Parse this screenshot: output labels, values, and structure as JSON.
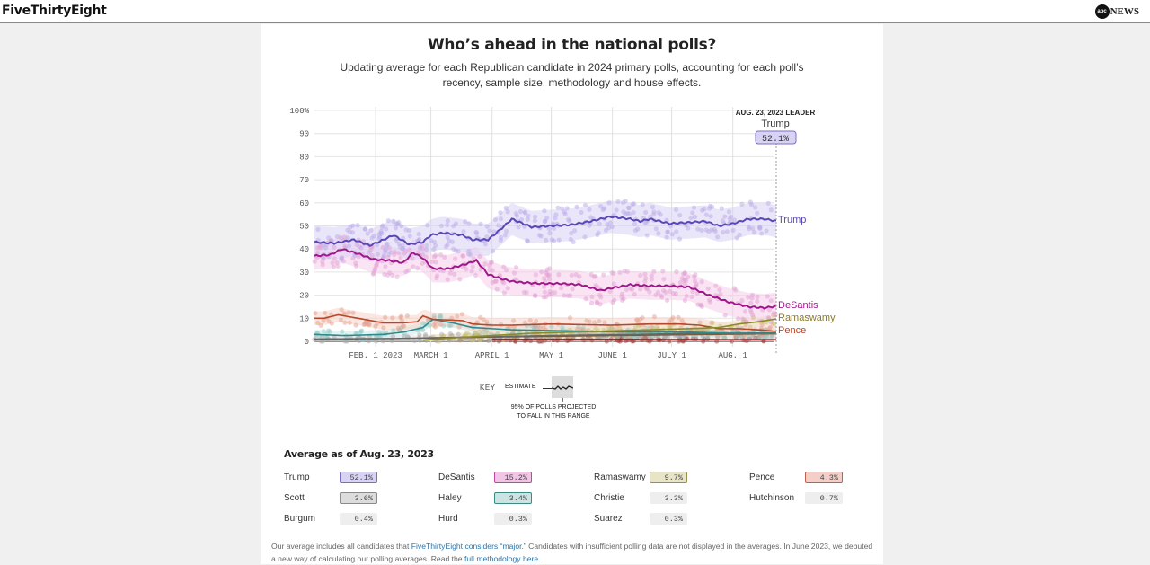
{
  "header": {
    "brand": "FiveThirtyEight",
    "partner_logo_text": "abc",
    "partner_name": "NEWS"
  },
  "title": "Who’s ahead in the national polls?",
  "subtitle": "Updating average for each Republican candidate in 2024 primary polls, accounting for each poll’s recency, sample size, methodology and house effects.",
  "key": {
    "label": "KEY",
    "estimate": "ESTIMATE",
    "note_line1": "95% OF POLLS PROJECTED",
    "note_line2": "TO FALL IN THIS RANGE"
  },
  "leader": {
    "header": "AUG. 23, 2023 LEADER",
    "name": "Trump",
    "value": "52.1%"
  },
  "averages": {
    "title": "Average as of Aug. 23, 2023",
    "items": [
      {
        "name": "Trump",
        "value": "52.1%",
        "bg": "#d8d3f5",
        "border": "#7b6fc4"
      },
      {
        "name": "DeSantis",
        "value": "15.2%",
        "bg": "#f2c4e6",
        "border": "#c0479e"
      },
      {
        "name": "Ramaswamy",
        "value": "9.7%",
        "bg": "#e8e4c6",
        "border": "#9a8f4a"
      },
      {
        "name": "Pence",
        "value": "4.3%",
        "bg": "#f3cfc7",
        "border": "#c0614c"
      },
      {
        "name": "Scott",
        "value": "3.6%",
        "bg": "#dcdcdc",
        "border": "#8a8a8a"
      },
      {
        "name": "Haley",
        "value": "3.4%",
        "bg": "#cbe3e1",
        "border": "#3d8a85"
      },
      {
        "name": "Christie",
        "value": "3.3%",
        "bg": "#eeeeee",
        "border": ""
      },
      {
        "name": "Hutchinson",
        "value": "0.7%",
        "bg": "#eeeeee",
        "border": ""
      },
      {
        "name": "Burgum",
        "value": "0.4%",
        "bg": "#eeeeee",
        "border": ""
      },
      {
        "name": "Hurd",
        "value": "0.3%",
        "bg": "#eeeeee",
        "border": ""
      },
      {
        "name": "Suarez",
        "value": "0.3%",
        "bg": "#eeeeee",
        "border": ""
      }
    ]
  },
  "footnote": {
    "part1": "Our average includes all candidates that ",
    "link1": "FiveThirtyEight considers “major.”",
    "part2": " Candidates with insufficient polling data are not displayed in the averages. In June 2023, we debuted a new way of calculating our polling averages. Read the ",
    "link2": "full methodology here",
    "part3": "."
  },
  "chart_data": {
    "type": "line",
    "title": "Who’s ahead in the national polls?",
    "xlabel": "",
    "ylabel": "",
    "ylim": [
      0,
      100
    ],
    "yticks": [
      "0",
      "10",
      "20",
      "30",
      "40",
      "50",
      "60",
      "70",
      "80",
      "90",
      "100%"
    ],
    "ytick_values": [
      0,
      10,
      20,
      30,
      40,
      50,
      60,
      70,
      80,
      90,
      100
    ],
    "x_start_day": 0,
    "x_end_day": 234,
    "x_unit": "days since Jan. 1, 2023",
    "xticks": [
      {
        "label": "FEB. 1 2023",
        "day": 31
      },
      {
        "label": "MARCH 1",
        "day": 59
      },
      {
        "label": "APRIL 1",
        "day": 90
      },
      {
        "label": "MAY 1",
        "day": 120
      },
      {
        "label": "JUNE 1",
        "day": 151
      },
      {
        "label": "JULY 1",
        "day": 181
      },
      {
        "label": "AUG. 1",
        "day": 212
      }
    ],
    "grid": true,
    "series": [
      {
        "name": "Trump",
        "color": "#5b46b8",
        "band": "#d9d2f4",
        "dots": "#b9a9e8",
        "labeled": true,
        "x": [
          0,
          10,
          20,
          28,
          35,
          40,
          48,
          55,
          59,
          65,
          75,
          80,
          88,
          95,
          100,
          110,
          120,
          130,
          140,
          150,
          160,
          165,
          170,
          180,
          190,
          198,
          205,
          212,
          220,
          228,
          234
        ],
        "y": [
          43,
          42.5,
          44,
          41.5,
          44,
          46,
          42,
          43,
          46,
          47,
          46,
          44,
          44,
          49,
          53,
          49.5,
          50,
          50.5,
          52,
          54,
          53,
          52,
          53,
          51,
          51.5,
          52,
          50,
          51,
          53,
          53,
          52.1
        ],
        "band_halfwidth": 7
      },
      {
        "name": "DeSantis",
        "color": "#a0178c",
        "band": "#f5cdea",
        "dots": "#e2a0d3",
        "labeled": true,
        "x": [
          0,
          8,
          14,
          22,
          30,
          38,
          45,
          50,
          55,
          60,
          68,
          75,
          82,
          88,
          95,
          100,
          105,
          115,
          125,
          135,
          145,
          150,
          160,
          170,
          180,
          190,
          200,
          210,
          220,
          228,
          234
        ],
        "y": [
          37,
          37.5,
          40,
          38,
          35.5,
          35,
          34,
          38.5,
          36,
          31.5,
          31.5,
          33,
          35,
          29,
          27,
          26,
          25.5,
          25,
          25,
          24.5,
          22,
          23,
          24.5,
          24,
          24,
          23.5,
          20,
          17,
          15,
          14.5,
          15.2
        ],
        "band_halfwidth": 6
      },
      {
        "name": "Ramaswamy",
        "color": "#8a8a2a",
        "band": "#ece6c8",
        "dots": "#cbbd7a",
        "labeled": true,
        "x": [
          55,
          70,
          90,
          110,
          130,
          150,
          170,
          190,
          205,
          215,
          225,
          234
        ],
        "y": [
          0.5,
          1.5,
          2.5,
          3.5,
          4,
          4.5,
          5,
          5.5,
          6,
          7.5,
          8.5,
          9.7
        ],
        "band_halfwidth": 2
      },
      {
        "name": "Pence",
        "color": "#b5472a",
        "band": "#f7d3c8",
        "dots": "#e4a28f",
        "labeled": true,
        "x": [
          0,
          5,
          12,
          22,
          35,
          45,
          52,
          55,
          60,
          75,
          80,
          90,
          100,
          120,
          150,
          170,
          185,
          195,
          205,
          215,
          225,
          234
        ],
        "y": [
          10,
          10,
          11.5,
          10,
          8,
          8,
          8.5,
          11,
          9.5,
          9,
          7.5,
          7,
          7,
          7.5,
          7,
          7.5,
          7.5,
          7,
          5.5,
          5.5,
          5,
          4.3
        ],
        "band_halfwidth": 3
      },
      {
        "name": "Haley",
        "color": "#2e8a8a",
        "band": "#cfe8e6",
        "dots": "#8fcac6",
        "labeled": false,
        "x": [
          0,
          15,
          35,
          45,
          55,
          60,
          70,
          80,
          100,
          130,
          160,
          190,
          210,
          234
        ],
        "y": [
          3,
          2.5,
          3,
          4,
          6,
          9.5,
          8,
          6,
          5,
          4.5,
          4,
          4,
          3.5,
          3.4
        ],
        "band_halfwidth": 2
      },
      {
        "name": "Scott",
        "color": "#666666",
        "band": "#e6e6e6",
        "dots": "#aaaaaa",
        "labeled": false,
        "x": [
          0,
          40,
          80,
          120,
          160,
          200,
          234
        ],
        "y": [
          1,
          1.2,
          1.8,
          2.5,
          3,
          3.5,
          3.6
        ],
        "band_halfwidth": 1.5
      },
      {
        "name": "Christie",
        "color": "#7a5a3a",
        "band": "#ece0d6",
        "dots": "#b09078",
        "labeled": false,
        "x": [
          59,
          100,
          150,
          200,
          234
        ],
        "y": [
          1.5,
          2,
          2.5,
          3,
          3.3
        ],
        "band_halfwidth": 1.5
      },
      {
        "name": "Hutchinson",
        "color": "#8b1a1a",
        "band": "#f2d5d5",
        "dots": "#a23a3a",
        "labeled": false,
        "x": [
          90,
          150,
          234
        ],
        "y": [
          0.8,
          0.8,
          0.7
        ],
        "band_halfwidth": 1
      }
    ],
    "leader_marker_day": 234
  }
}
